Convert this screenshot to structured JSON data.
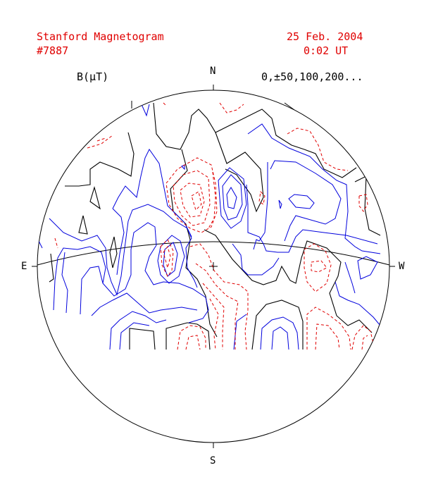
{
  "header": {
    "title": "Stanford Magnetogram",
    "rotation": "#7887",
    "date": "25 Feb. 2004",
    "time": "0:02 UT"
  },
  "legend": {
    "unit": "B(μT)",
    "levels": "0,±50,100,200..."
  },
  "compass": {
    "north": "N",
    "south": "S",
    "east": "E",
    "west": "W"
  },
  "colors": {
    "positive": "#0000dd",
    "negative": "#e00000",
    "neutral": "#000000",
    "labels": "#e00000"
  }
}
